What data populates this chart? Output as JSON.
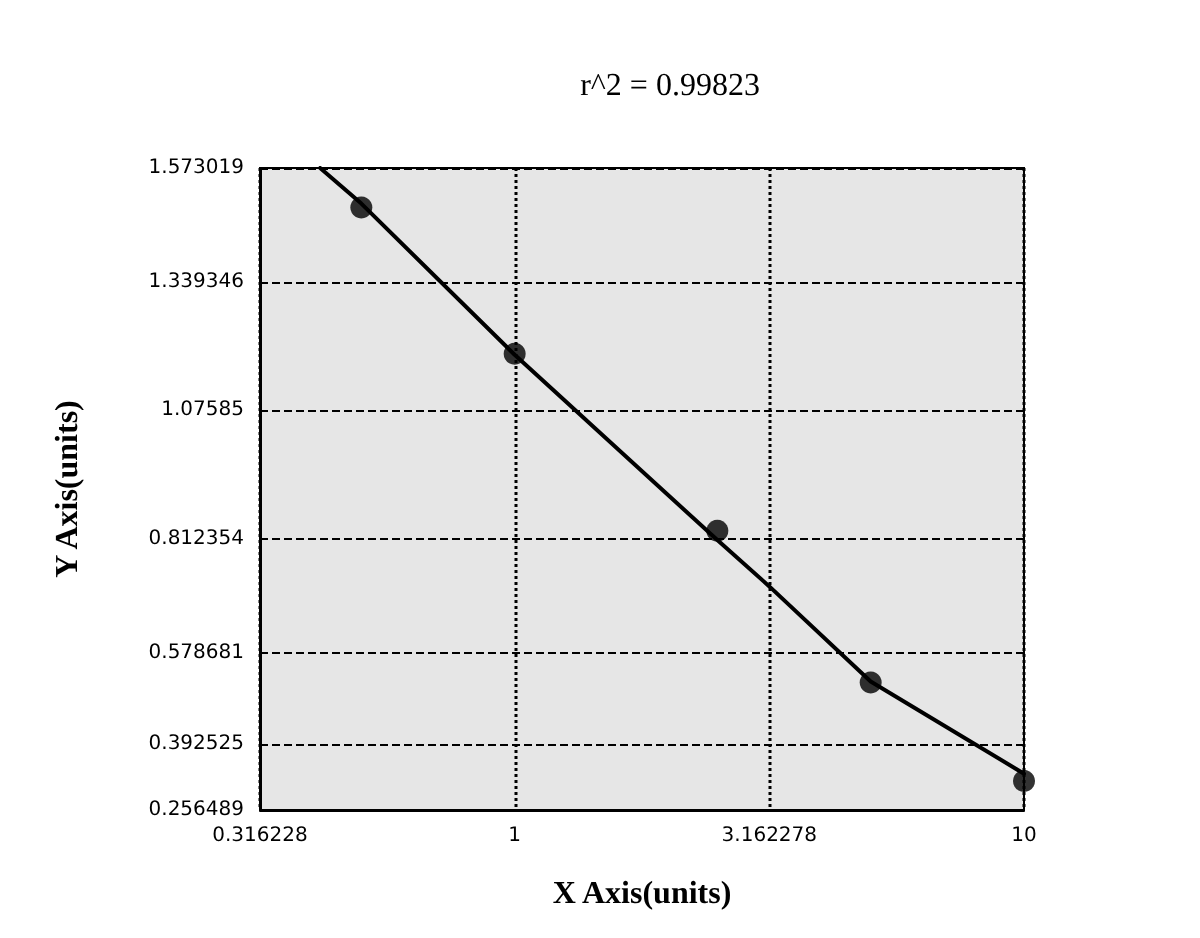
{
  "chart_data": {
    "type": "scatter",
    "title": "r^2 = 0.99823",
    "xlabel": "X Axis(units)",
    "ylabel": "Y Axis(units)",
    "log": "x",
    "grid": true,
    "marker": "circle",
    "xlim": [
      0.316228,
      10
    ],
    "xticks": [
      0.316228,
      1,
      3.162278,
      10
    ],
    "ylim": [
      0.256489,
      1.573019
    ],
    "yticks": [
      0.256489,
      0.392525,
      0.578681,
      0.812354,
      1.07585,
      1.339346,
      1.573019
    ],
    "series": [
      {
        "color": "#000000",
        "x": [
          0.5,
          1,
          2.5,
          5,
          10
        ],
        "values": [
          1.492,
          1.192,
          0.829,
          0.518,
          0.316
        ]
      },
      {
        "type": "line",
        "color": "#000000",
        "marker": "none",
        "line_style": "solid",
        "x": [
          0.415,
          0.5,
          1,
          2.5,
          3.162278,
          5,
          10
        ],
        "values": [
          1.573,
          1.5,
          1.19,
          0.81,
          0.715,
          0.52,
          0.331
        ]
      }
    ]
  }
}
